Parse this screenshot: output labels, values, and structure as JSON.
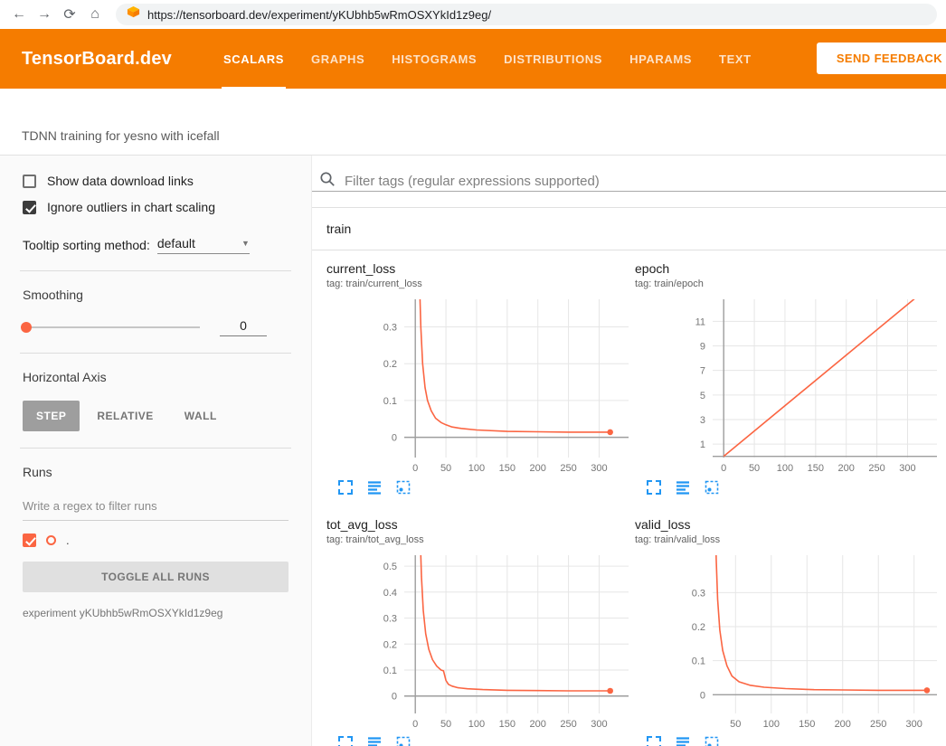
{
  "colors": {
    "brand": "#f57c00",
    "run": "#fb6542",
    "icon-blue": "#2196f3"
  },
  "browser": {
    "back_glyph": "←",
    "forward_glyph": "→",
    "reload_glyph": "⟳",
    "home_glyph": "⌂",
    "url": "https://tensorboard.dev/experiment/yKUbhb5wRmOSXYkId1z9eg/"
  },
  "header": {
    "logo": "TensorBoard.dev",
    "tabs": [
      {
        "label": "SCALARS",
        "active": true
      },
      {
        "label": "GRAPHS",
        "active": false
      },
      {
        "label": "HISTOGRAMS",
        "active": false
      },
      {
        "label": "DISTRIBUTIONS",
        "active": false
      },
      {
        "label": "HPARAMS",
        "active": false
      },
      {
        "label": "TEXT",
        "active": false
      }
    ],
    "feedback_button": "SEND FEEDBACK"
  },
  "experiment_bar": {
    "title": "TDNN training for yesno with icefall"
  },
  "sidebar": {
    "show_download": {
      "label": "Show data download links",
      "checked": false
    },
    "ignore_outliers": {
      "label": "Ignore outliers in chart scaling",
      "checked": true
    },
    "tooltip_sorting": {
      "label": "Tooltip sorting method:",
      "value": "default",
      "caret": "▼"
    },
    "smoothing": {
      "label": "Smoothing",
      "value": "0"
    },
    "horizontal_axis": {
      "label": "Horizontal Axis",
      "options": [
        "STEP",
        "RELATIVE",
        "WALL"
      ],
      "selected": "STEP"
    },
    "runs": {
      "label": "Runs",
      "filter_placeholder": "Write a regex to filter runs",
      "run_name": ".",
      "run_checked": true,
      "toggle_button": "TOGGLE ALL RUNS",
      "experiment_label": "experiment yKUbhb5wRmOSXYkId1z9eg"
    }
  },
  "main": {
    "filter_placeholder": "Filter tags (regular expressions supported)",
    "group": "train"
  },
  "chart_data": [
    {
      "type": "line",
      "title": "current_loss",
      "tag_label": "tag: train/current_loss",
      "xlim": [
        -18,
        348
      ],
      "ylim": [
        -0.055,
        0.375
      ],
      "x_ticks": [
        0,
        50,
        100,
        150,
        200,
        250,
        300
      ],
      "y_ticks": [
        0,
        0.1,
        0.2,
        0.3
      ],
      "end_dot": true,
      "series": [
        {
          "name": ".",
          "x": [
            3,
            5,
            7,
            9,
            12,
            16,
            20,
            26,
            33,
            42,
            50,
            60,
            75,
            100,
            150,
            200,
            250,
            300,
            318
          ],
          "y": [
            1.0,
            0.62,
            0.42,
            0.3,
            0.2,
            0.135,
            0.1,
            0.072,
            0.052,
            0.04,
            0.034,
            0.028,
            0.024,
            0.02,
            0.016,
            0.015,
            0.014,
            0.014,
            0.014
          ]
        }
      ]
    },
    {
      "type": "line",
      "title": "epoch",
      "tag_label": "tag: train/epoch",
      "xlim": [
        -18,
        348
      ],
      "ylim": [
        -0.1,
        12.8
      ],
      "x_ticks": [
        0,
        50,
        100,
        150,
        200,
        250,
        300
      ],
      "y_ticks": [
        1,
        3,
        5,
        7,
        9,
        11
      ],
      "end_dot": false,
      "series": [
        {
          "name": ".",
          "x": [
            0,
            320
          ],
          "y": [
            0,
            13.2
          ]
        }
      ]
    },
    {
      "type": "line",
      "title": "tot_avg_loss",
      "tag_label": "tag: train/tot_avg_loss",
      "xlim": [
        -18,
        348
      ],
      "ylim": [
        -0.067,
        0.542
      ],
      "x_ticks": [
        0,
        50,
        100,
        150,
        200,
        250,
        300
      ],
      "y_ticks": [
        0,
        0.1,
        0.2,
        0.3,
        0.4,
        0.5
      ],
      "end_dot": true,
      "series": [
        {
          "name": ".",
          "x": [
            4,
            6,
            8,
            10,
            13,
            17,
            22,
            28,
            35,
            42,
            46,
            50,
            54,
            60,
            70,
            85,
            110,
            150,
            200,
            250,
            300,
            318
          ],
          "y": [
            1.4,
            0.9,
            0.62,
            0.46,
            0.33,
            0.24,
            0.18,
            0.14,
            0.115,
            0.1,
            0.097,
            0.06,
            0.045,
            0.038,
            0.032,
            0.028,
            0.025,
            0.022,
            0.021,
            0.02,
            0.02,
            0.02
          ]
        }
      ]
    },
    {
      "type": "line",
      "title": "valid_loss",
      "tag_label": "tag: train/valid_loss",
      "xlim": [
        18,
        332
      ],
      "ylim": [
        -0.055,
        0.41
      ],
      "x_ticks": [
        50,
        100,
        150,
        200,
        250,
        300
      ],
      "y_ticks": [
        0,
        0.1,
        0.2,
        0.3
      ],
      "end_dot": true,
      "series": [
        {
          "name": ".",
          "x": [
            21,
            22,
            23,
            25,
            28,
            32,
            38,
            45,
            55,
            70,
            90,
            120,
            160,
            200,
            250,
            300,
            318
          ],
          "y": [
            0.75,
            0.52,
            0.4,
            0.28,
            0.19,
            0.13,
            0.085,
            0.055,
            0.038,
            0.028,
            0.022,
            0.018,
            0.015,
            0.014,
            0.013,
            0.013,
            0.013
          ]
        }
      ]
    }
  ]
}
